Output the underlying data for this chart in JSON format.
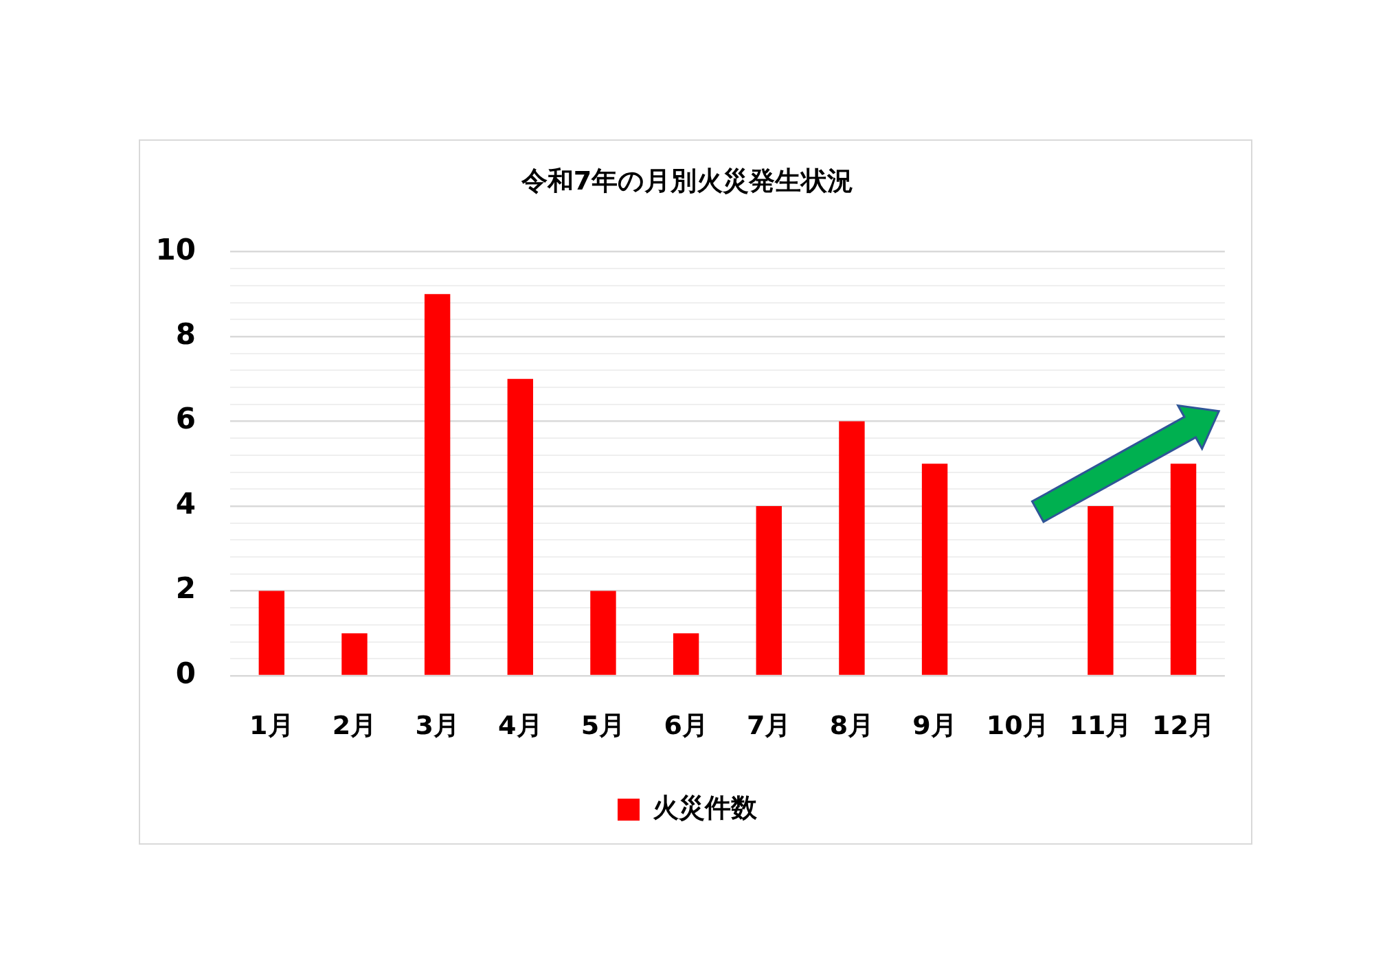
{
  "chart_data": {
    "type": "bar",
    "title": "令和7年の月別火災発生状況",
    "categories": [
      "1月",
      "2月",
      "3月",
      "4月",
      "5月",
      "6月",
      "7月",
      "8月",
      "9月",
      "10月",
      "11月",
      "12月"
    ],
    "series": [
      {
        "name": "火災件数",
        "color": "#ff0000",
        "values": [
          2,
          1,
          9,
          7,
          2,
          1,
          4,
          6,
          5,
          0,
          4,
          5
        ]
      }
    ],
    "ylim": [
      0,
      10
    ],
    "yticks": [
      0,
      {
        "value": 0.4,
        "label": null
      },
      {
        "value": 0.8,
        "label": null
      },
      {
        "value": 1.2,
        "label": null
      },
      {
        "value": 1.6,
        "label": null
      },
      2,
      {
        "value": 2.4,
        "label": null
      },
      {
        "value": 2.8,
        "label": null
      },
      {
        "value": 3.2,
        "label": null
      },
      {
        "value": 3.6,
        "label": null
      },
      4,
      {
        "value": 4.4,
        "label": null
      },
      {
        "value": 4.8,
        "label": null
      },
      {
        "value": 5.2,
        "label": null
      },
      {
        "value": 5.6,
        "label": null
      },
      6,
      {
        "value": 6.4,
        "label": null
      },
      {
        "value": 6.8,
        "label": null
      },
      {
        "value": 7.2,
        "label": null
      },
      {
        "value": 7.6,
        "label": null
      },
      8,
      {
        "value": 8.4,
        "label": null
      },
      {
        "value": 8.8,
        "label": null
      },
      {
        "value": 9.2,
        "label": null
      },
      {
        "value": 9.6,
        "label": null
      },
      10
    ],
    "grid": "y",
    "legend": "bottom"
  }
}
